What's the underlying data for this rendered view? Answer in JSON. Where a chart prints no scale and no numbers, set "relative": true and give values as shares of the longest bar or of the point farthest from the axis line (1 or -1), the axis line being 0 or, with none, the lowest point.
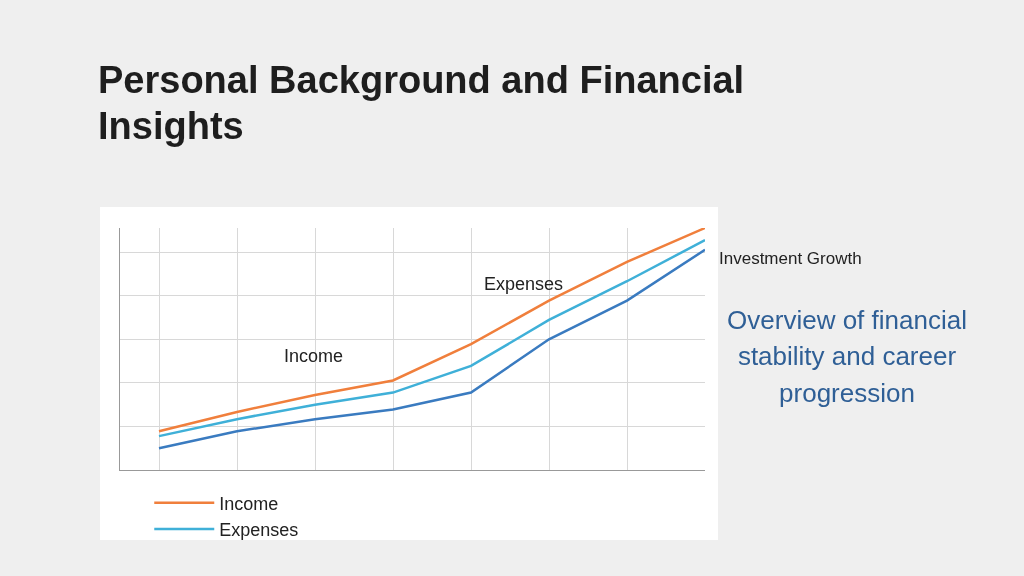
{
  "chart_data": {
    "type": "line",
    "title": "Personal Background and Financial Insights",
    "relative": true,
    "categories": [
      null,
      null,
      null,
      null,
      null,
      null,
      null,
      null
    ],
    "series": [
      {
        "name": "Income",
        "color": "#f07f3c",
        "values": [
          0.16,
          0.24,
          0.31,
          0.37,
          0.52,
          0.7,
          0.86,
          1
        ]
      },
      {
        "name": "Expenses",
        "color": "#3fb0d8",
        "values": [
          0.14,
          0.21,
          0.27,
          0.32,
          0.43,
          0.62,
          0.78,
          0.95
        ]
      },
      {
        "color": "#3a7bc0",
        "values": [
          0.09,
          0.16,
          0.21,
          0.25,
          0.32,
          0.54,
          0.7,
          0.91
        ]
      }
    ],
    "annotations": [
      "Income",
      "Expenses",
      "Investment Growth",
      "Overview of financial stability and career progression"
    ],
    "grid": true,
    "legend": "bottom",
    "marker": "none",
    "line_style": "solid"
  }
}
